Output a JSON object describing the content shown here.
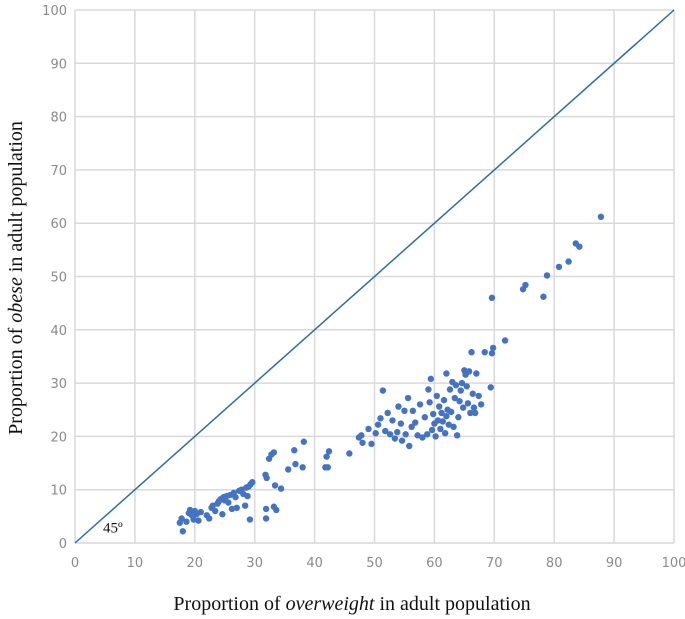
{
  "chart_data": {
    "type": "scatter",
    "title": "",
    "xlabel_parts": [
      {
        "text": "Proportion of ",
        "italic": false
      },
      {
        "text": "overweight",
        "italic": true
      },
      {
        "text": " in adult population",
        "italic": false
      }
    ],
    "ylabel_parts": [
      {
        "text": "Proportion of ",
        "italic": false
      },
      {
        "text": "obese",
        "italic": true
      },
      {
        "text": " in adult population",
        "italic": false
      }
    ],
    "xlim": [
      0,
      100
    ],
    "ylim": [
      0,
      100
    ],
    "x_ticks": [
      "0",
      "10",
      "20",
      "30",
      "40",
      "50",
      "60",
      "70",
      "80",
      "90",
      "100"
    ],
    "y_ticks": [
      "0",
      "10",
      "20",
      "30",
      "40",
      "50",
      "60",
      "70",
      "80",
      "90",
      "100"
    ],
    "grid": true,
    "reference_line": {
      "from": [
        0,
        0
      ],
      "to": [
        100,
        100
      ],
      "label": "45º",
      "label_at": [
        6,
        2
      ]
    },
    "colors": {
      "points": "#4472c4",
      "line": "#2e6da4",
      "grid": "#d9d9d9"
    },
    "points": [
      [
        17.5,
        3.8
      ],
      [
        17.8,
        4.6
      ],
      [
        18.0,
        2.2
      ],
      [
        18.6,
        4.0
      ],
      [
        19.0,
        5.6
      ],
      [
        19.2,
        6.2
      ],
      [
        19.5,
        5.2
      ],
      [
        19.8,
        4.4
      ],
      [
        20.0,
        6.0
      ],
      [
        20.3,
        5.4
      ],
      [
        20.6,
        4.2
      ],
      [
        21.0,
        5.8
      ],
      [
        22.0,
        5.2
      ],
      [
        22.4,
        4.6
      ],
      [
        22.8,
        6.6
      ],
      [
        23.0,
        7.0
      ],
      [
        23.4,
        6.0
      ],
      [
        23.8,
        7.4
      ],
      [
        24.0,
        7.8
      ],
      [
        24.3,
        8.2
      ],
      [
        24.6,
        5.4
      ],
      [
        24.8,
        8.6
      ],
      [
        25.0,
        8.0
      ],
      [
        25.3,
        8.8
      ],
      [
        25.6,
        7.6
      ],
      [
        25.9,
        9.0
      ],
      [
        26.2,
        6.4
      ],
      [
        26.5,
        9.4
      ],
      [
        26.8,
        8.6
      ],
      [
        27.0,
        6.6
      ],
      [
        27.4,
        9.8
      ],
      [
        27.8,
        10.0
      ],
      [
        28.1,
        9.2
      ],
      [
        28.4,
        7.0
      ],
      [
        28.6,
        10.4
      ],
      [
        28.8,
        8.8
      ],
      [
        29.0,
        10.6
      ],
      [
        29.3,
        11.0
      ],
      [
        29.6,
        11.4
      ],
      [
        29.2,
        4.4
      ],
      [
        31.8,
        12.8
      ],
      [
        32.0,
        12.2
      ],
      [
        31.9,
        6.4
      ],
      [
        31.9,
        4.6
      ],
      [
        32.4,
        15.8
      ],
      [
        32.8,
        16.6
      ],
      [
        33.2,
        17.0
      ],
      [
        33.2,
        6.8
      ],
      [
        33.4,
        10.8
      ],
      [
        33.6,
        6.2
      ],
      [
        34.4,
        10.2
      ],
      [
        35.6,
        13.8
      ],
      [
        36.6,
        17.4
      ],
      [
        36.8,
        14.8
      ],
      [
        38.0,
        14.2
      ],
      [
        38.2,
        19.0
      ],
      [
        41.8,
        14.2
      ],
      [
        42.0,
        16.2
      ],
      [
        42.2,
        14.2
      ],
      [
        42.4,
        17.2
      ],
      [
        45.8,
        16.8
      ],
      [
        47.4,
        19.8
      ],
      [
        47.8,
        20.2
      ],
      [
        48.0,
        18.8
      ],
      [
        49.0,
        21.4
      ],
      [
        49.5,
        18.6
      ],
      [
        50.2,
        20.6
      ],
      [
        50.6,
        22.2
      ],
      [
        51.0,
        23.4
      ],
      [
        51.4,
        28.6
      ],
      [
        51.8,
        21.0
      ],
      [
        52.2,
        24.4
      ],
      [
        52.6,
        20.4
      ],
      [
        53.0,
        23.0
      ],
      [
        53.4,
        19.6
      ],
      [
        53.8,
        20.8
      ],
      [
        54.0,
        25.6
      ],
      [
        54.4,
        22.4
      ],
      [
        54.6,
        19.2
      ],
      [
        55.0,
        24.8
      ],
      [
        55.2,
        20.4
      ],
      [
        55.6,
        27.2
      ],
      [
        55.8,
        18.2
      ],
      [
        56.2,
        21.8
      ],
      [
        56.4,
        24.8
      ],
      [
        56.8,
        22.6
      ],
      [
        57.2,
        20.2
      ],
      [
        57.6,
        26.0
      ],
      [
        58.0,
        19.8
      ],
      [
        58.4,
        23.6
      ],
      [
        58.8,
        20.4
      ],
      [
        59.0,
        28.8
      ],
      [
        59.2,
        26.4
      ],
      [
        59.4,
        30.8
      ],
      [
        59.6,
        21.2
      ],
      [
        59.8,
        24.2
      ],
      [
        60.0,
        22.4
      ],
      [
        60.2,
        20.0
      ],
      [
        60.4,
        27.6
      ],
      [
        60.6,
        23.0
      ],
      [
        60.8,
        25.6
      ],
      [
        61.0,
        21.4
      ],
      [
        61.2,
        24.4
      ],
      [
        61.4,
        22.8
      ],
      [
        61.6,
        26.8
      ],
      [
        61.8,
        20.6
      ],
      [
        62.0,
        23.8
      ],
      [
        62.0,
        31.8
      ],
      [
        62.2,
        25.0
      ],
      [
        62.4,
        22.2
      ],
      [
        62.6,
        28.8
      ],
      [
        62.8,
        24.6
      ],
      [
        63.0,
        30.2
      ],
      [
        63.2,
        21.8
      ],
      [
        63.4,
        27.2
      ],
      [
        63.6,
        29.6
      ],
      [
        63.8,
        20.2
      ],
      [
        64.0,
        23.6
      ],
      [
        64.2,
        26.6
      ],
      [
        64.4,
        28.6
      ],
      [
        64.6,
        30.0
      ],
      [
        64.8,
        25.4
      ],
      [
        65.0,
        32.4
      ],
      [
        65.2,
        31.6
      ],
      [
        65.4,
        29.4
      ],
      [
        65.6,
        26.2
      ],
      [
        65.8,
        32.2
      ],
      [
        66.0,
        24.4
      ],
      [
        66.2,
        35.8
      ],
      [
        66.4,
        28.0
      ],
      [
        66.6,
        25.4
      ],
      [
        66.8,
        24.4
      ],
      [
        67.0,
        31.8
      ],
      [
        67.4,
        27.6
      ],
      [
        67.8,
        26.0
      ],
      [
        68.4,
        35.8
      ],
      [
        69.4,
        29.2
      ],
      [
        69.6,
        35.6
      ],
      [
        69.8,
        36.6
      ],
      [
        69.6,
        46.0
      ],
      [
        71.8,
        38.0
      ],
      [
        74.8,
        47.6
      ],
      [
        75.2,
        48.4
      ],
      [
        78.2,
        46.2
      ],
      [
        78.8,
        50.2
      ],
      [
        80.8,
        51.8
      ],
      [
        82.4,
        52.8
      ],
      [
        83.6,
        56.2
      ],
      [
        84.2,
        55.6
      ],
      [
        87.8,
        61.2
      ]
    ]
  }
}
